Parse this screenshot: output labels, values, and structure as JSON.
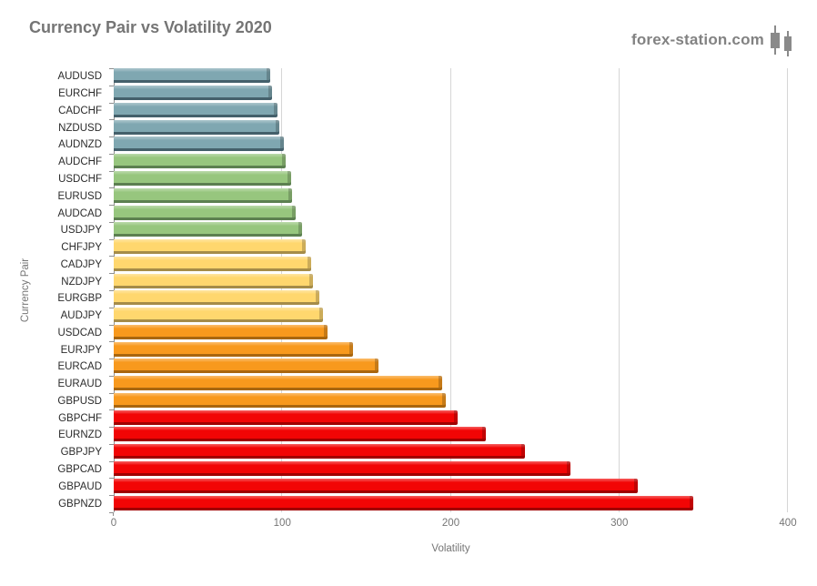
{
  "header": {
    "title": "Currency Pair vs Volatility 2020",
    "brand": "forex-station.com"
  },
  "chart_data": {
    "type": "bar",
    "orientation": "horizontal",
    "title": "Currency Pair vs Volatility 2020",
    "xlabel": "Volatility",
    "ylabel": "Currency Pair",
    "xlim": [
      0,
      400
    ],
    "x_ticks": [
      0,
      100,
      200,
      300,
      400
    ],
    "grid": true,
    "legend": "none",
    "color_groups": {
      "teal": {
        "face": "#7FA7B1",
        "edge": "#44606B"
      },
      "green": {
        "face": "#97C67E",
        "edge": "#5C8050"
      },
      "yellow": {
        "face": "#FFD76E",
        "edge": "#A58C48"
      },
      "orange": {
        "face": "#F8991D",
        "edge": "#A9660E"
      },
      "red": {
        "face": "#F20505",
        "edge": "#A00000"
      }
    },
    "bars": [
      {
        "pair": "AUDUSD",
        "value": 93,
        "group": "teal"
      },
      {
        "pair": "EURCHF",
        "value": 94,
        "group": "teal"
      },
      {
        "pair": "CADCHF",
        "value": 97,
        "group": "teal"
      },
      {
        "pair": "NZDUSD",
        "value": 98,
        "group": "teal"
      },
      {
        "pair": "AUDNZD",
        "value": 101,
        "group": "teal"
      },
      {
        "pair": "AUDCHF",
        "value": 102,
        "group": "green"
      },
      {
        "pair": "USDCHF",
        "value": 105,
        "group": "green"
      },
      {
        "pair": "EURUSD",
        "value": 106,
        "group": "green"
      },
      {
        "pair": "AUDCAD",
        "value": 108,
        "group": "green"
      },
      {
        "pair": "USDJPY",
        "value": 112,
        "group": "green"
      },
      {
        "pair": "CHFJPY",
        "value": 114,
        "group": "yellow"
      },
      {
        "pair": "CADJPY",
        "value": 117,
        "group": "yellow"
      },
      {
        "pair": "NZDJPY",
        "value": 118,
        "group": "yellow"
      },
      {
        "pair": "EURGBP",
        "value": 122,
        "group": "yellow"
      },
      {
        "pair": "AUDJPY",
        "value": 124,
        "group": "yellow"
      },
      {
        "pair": "USDCAD",
        "value": 127,
        "group": "orange"
      },
      {
        "pair": "EURJPY",
        "value": 142,
        "group": "orange"
      },
      {
        "pair": "EURCAD",
        "value": 157,
        "group": "orange"
      },
      {
        "pair": "EURAUD",
        "value": 195,
        "group": "orange"
      },
      {
        "pair": "GBPUSD",
        "value": 197,
        "group": "orange"
      },
      {
        "pair": "GBPCHF",
        "value": 204,
        "group": "red"
      },
      {
        "pair": "EURNZD",
        "value": 221,
        "group": "red"
      },
      {
        "pair": "GBPJPY",
        "value": 244,
        "group": "red"
      },
      {
        "pair": "GBPCAD",
        "value": 271,
        "group": "red"
      },
      {
        "pair": "GBPAUD",
        "value": 311,
        "group": "red"
      },
      {
        "pair": "GBPNZD",
        "value": 344,
        "group": "red"
      }
    ]
  }
}
